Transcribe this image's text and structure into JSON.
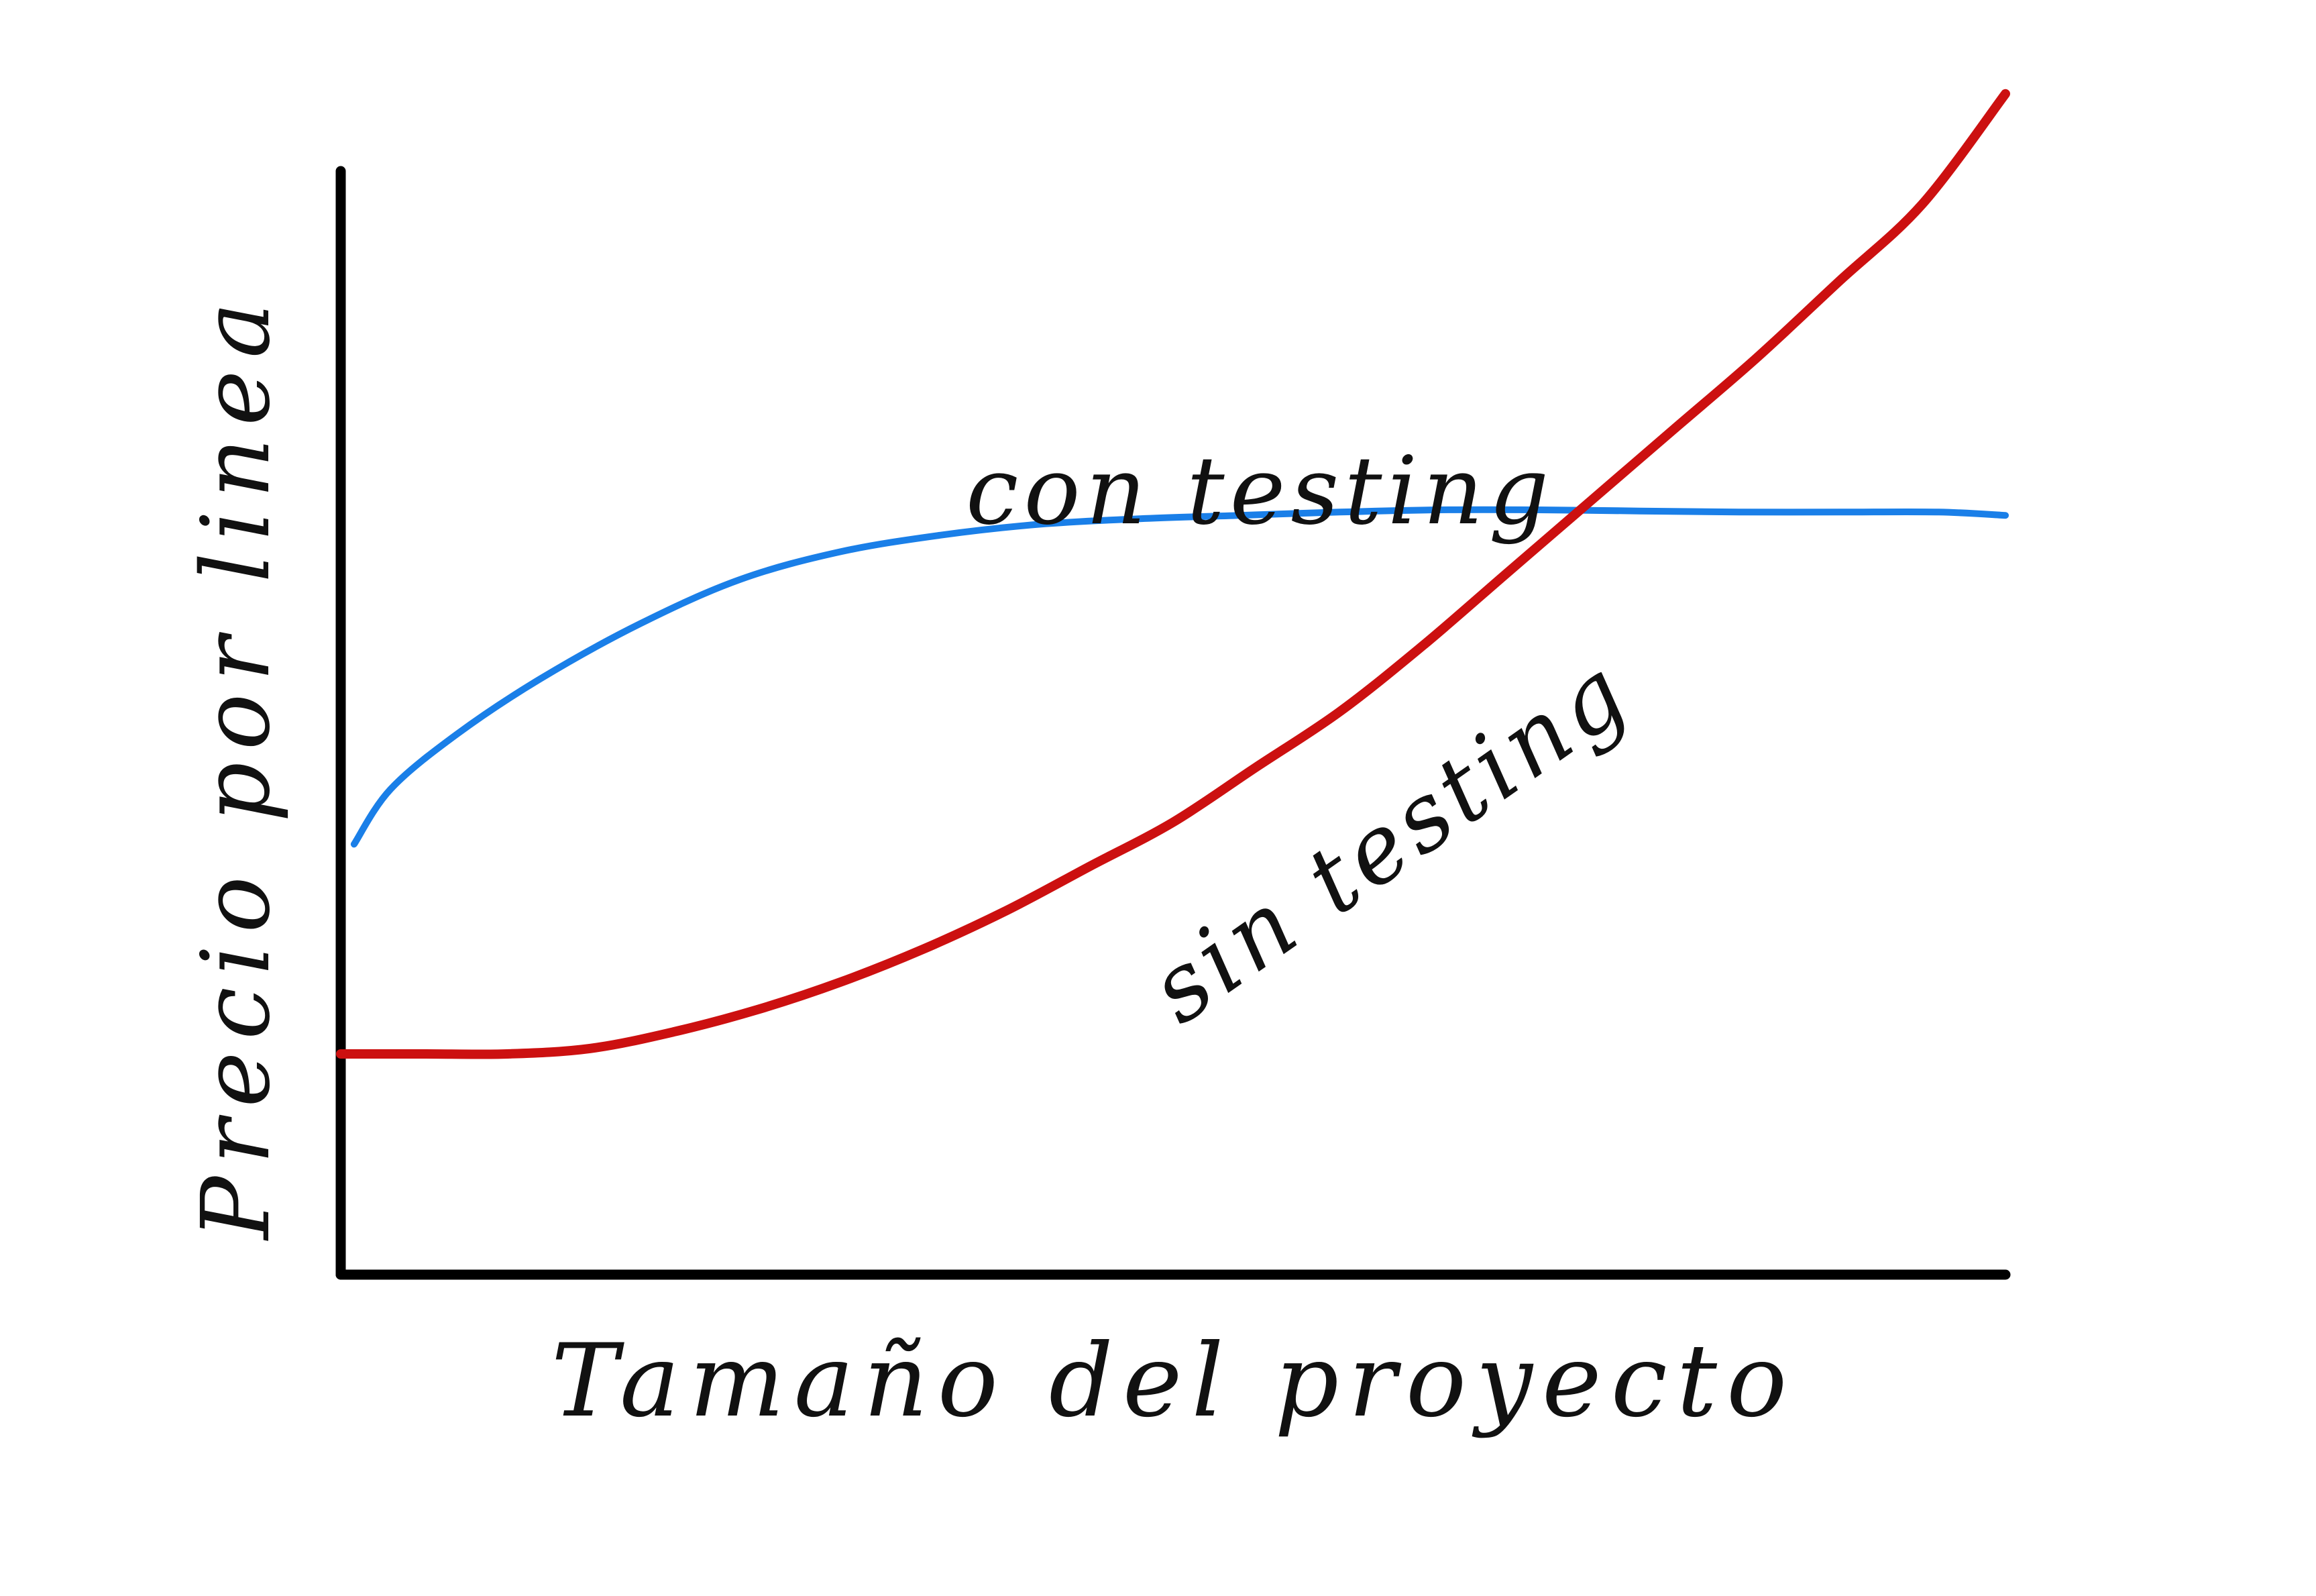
{
  "chart_data": {
    "type": "line",
    "title": "",
    "xlabel": "Tamaño del proyecto",
    "ylabel": "Precio por linea",
    "xlim": [
      0,
      100
    ],
    "ylim": [
      0,
      100
    ],
    "grid": false,
    "axis_ticks": false,
    "series": [
      {
        "name": "con testing",
        "color": "#1a7fe8",
        "x": [
          0.8,
          3,
          7,
          12,
          18,
          24,
          30,
          36,
          42,
          48,
          54,
          60,
          66,
          72,
          78,
          84,
          90,
          96,
          100
        ],
        "y": [
          39,
          44,
          49,
          54,
          59,
          63,
          65.5,
          67,
          68,
          68.5,
          68.8,
          69.1,
          69.3,
          69.3,
          69.2,
          69.1,
          69.1,
          69.1,
          68.8
        ]
      },
      {
        "name": "sin testing",
        "color": "#cc1010",
        "x": [
          0,
          5,
          10,
          15,
          20,
          25,
          30,
          35,
          40,
          45,
          50,
          55,
          60,
          65,
          70,
          75,
          80,
          85,
          90,
          95,
          100
        ],
        "y": [
          20,
          20,
          20,
          20.5,
          22,
          24,
          26.5,
          29.5,
          33,
          37,
          41,
          46,
          51,
          57,
          63.5,
          70,
          76.5,
          83,
          90,
          97,
          107
        ]
      }
    ]
  }
}
